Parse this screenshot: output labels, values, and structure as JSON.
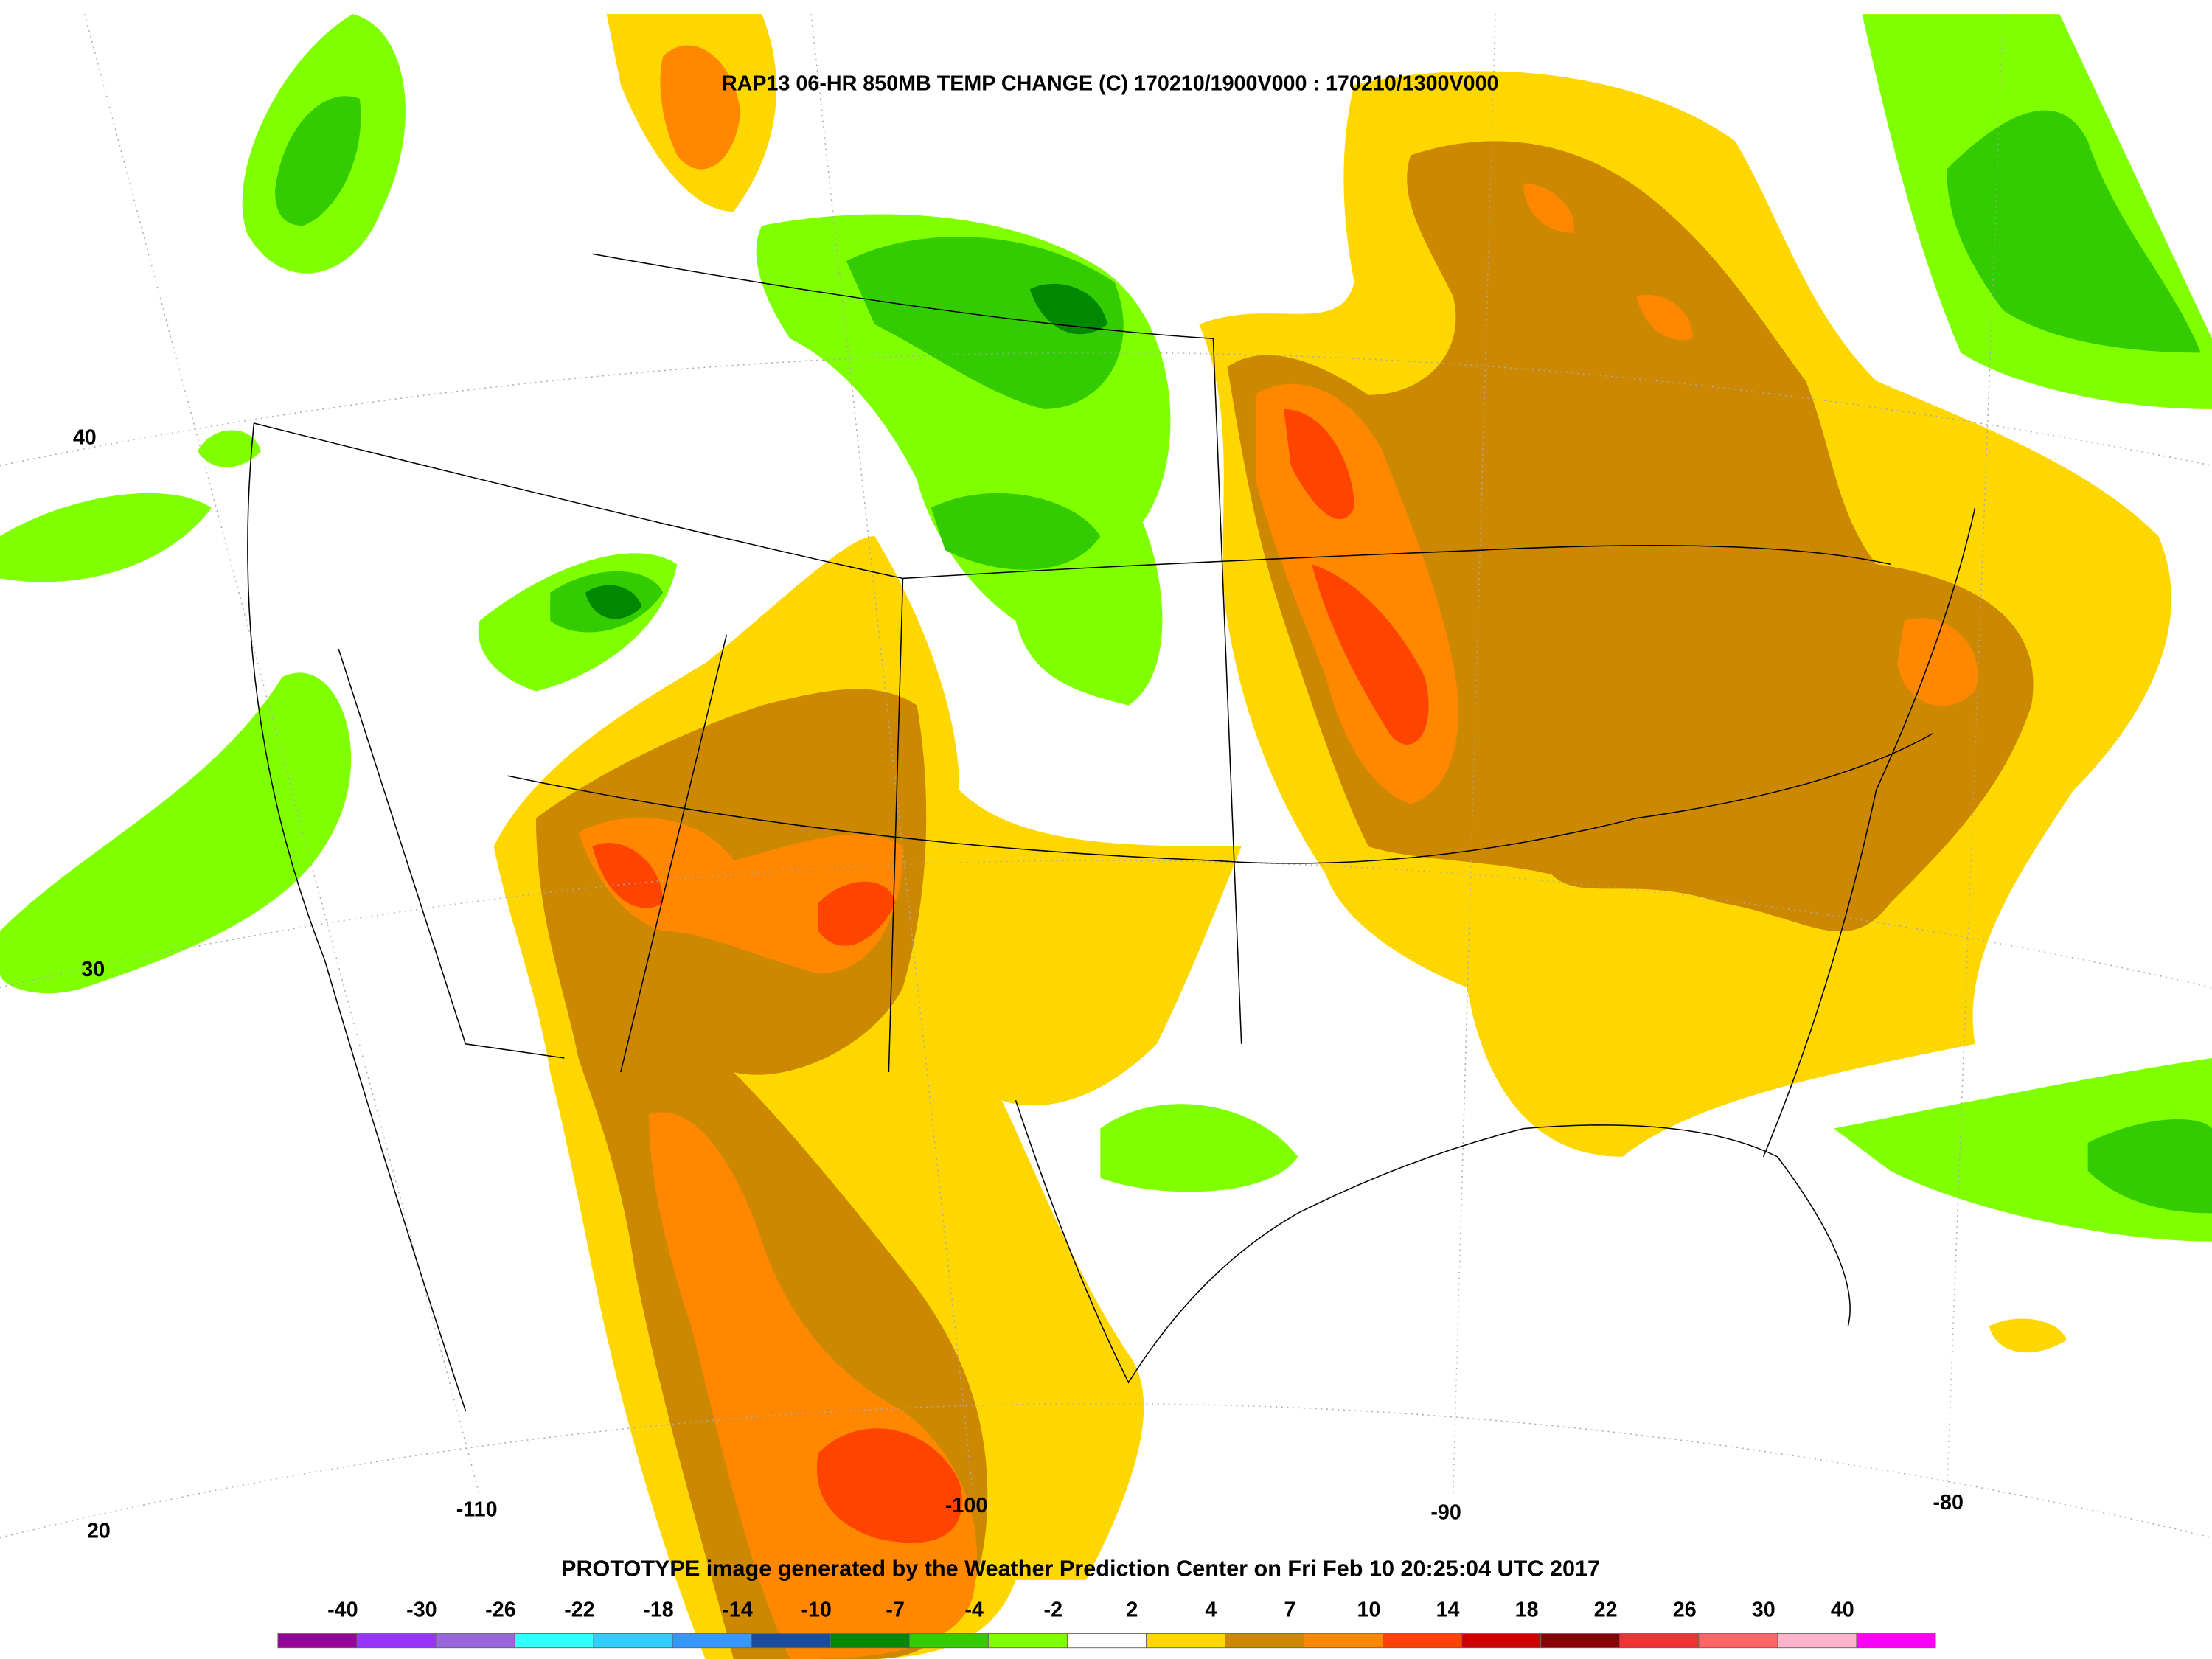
{
  "title": "RAP13 06-HR 850MB TEMP CHANGE (C) 170210/1900V000 : 170210/1300V000",
  "map": {
    "lat_labels": [
      "40",
      "30",
      "20"
    ],
    "lon_labels": [
      "-110",
      "-100",
      "-90",
      "-80"
    ]
  },
  "footer": "PROTOTYPE image generated by the Weather Prediction Center on Fri Feb 10 20:25:04 UTC 2017",
  "colorbar": {
    "labels": [
      "-40",
      "-30",
      "-26",
      "-22",
      "-18",
      "-14",
      "-10",
      "-7",
      "-4",
      "-2",
      "2",
      "4",
      "7",
      "10",
      "14",
      "18",
      "22",
      "26",
      "30",
      "40"
    ],
    "colors": [
      "#990099",
      "#9933ff",
      "#9966dd",
      "#33ffff",
      "#33ccff",
      "#3399ff",
      "#1a4d99",
      "#008800",
      "#33cc00",
      "#80ff00",
      "#ffffff",
      "#ffd700",
      "#cc8800",
      "#ff8800",
      "#ff4400",
      "#cc0000",
      "#880000",
      "#ee3333",
      "#ff6666",
      "#ffb3cc",
      "#ff00ff"
    ]
  }
}
